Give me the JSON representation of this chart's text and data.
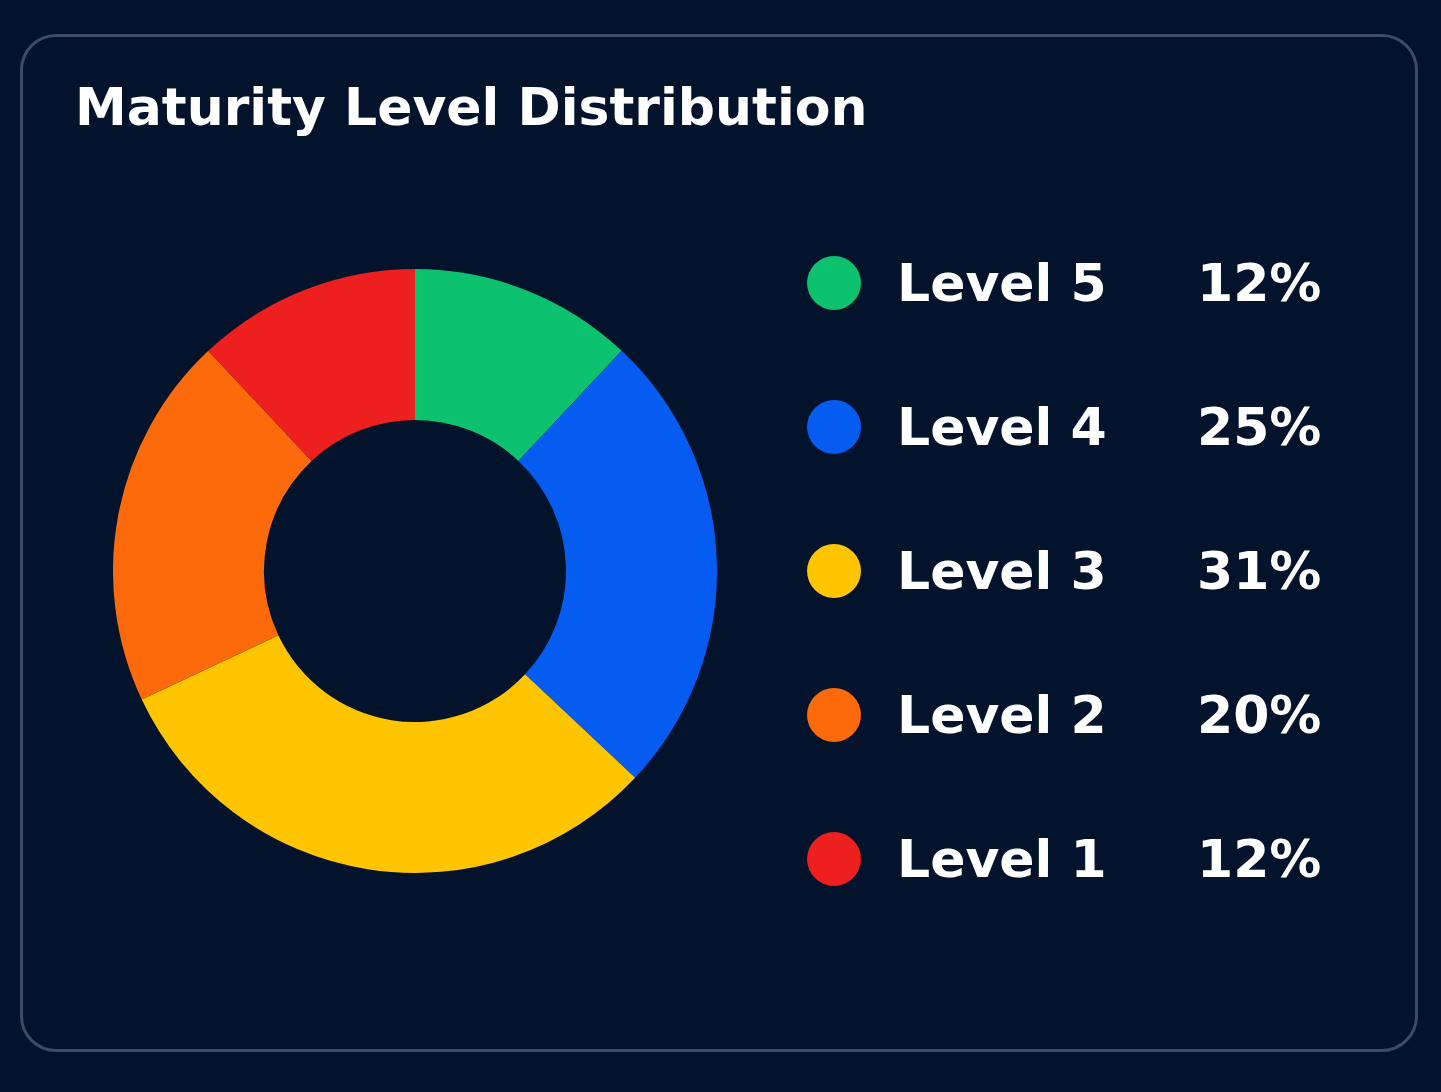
{
  "chart_data": {
    "type": "donut",
    "title": "Maturity Level Distribution",
    "categories": [
      "Level 5",
      "Level 4",
      "Level 3",
      "Level 2",
      "Level 1"
    ],
    "values": [
      12,
      25,
      31,
      20,
      12
    ],
    "colors": [
      "#0cc26f",
      "#065cf0",
      "#fec500",
      "#fd6a0c",
      "#ee1f1f"
    ],
    "value_labels": [
      "12%",
      "25%",
      "31%",
      "20%",
      "12%"
    ],
    "legend": "right"
  }
}
